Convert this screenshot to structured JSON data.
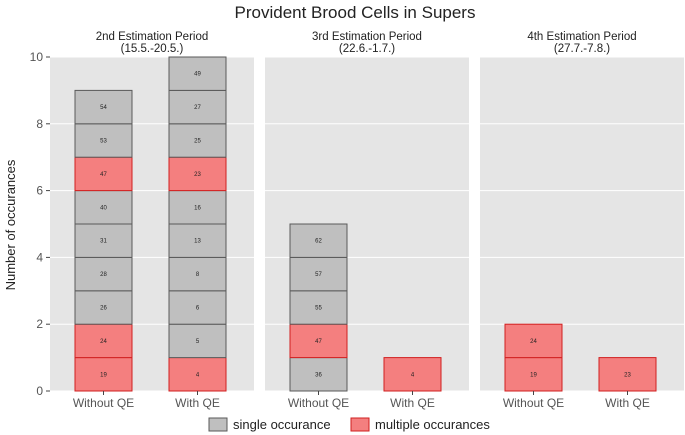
{
  "chart_data": {
    "type": "bar",
    "title": "Provident Brood Cells in Supers",
    "ylabel": "Number of occurances",
    "ylim": [
      0,
      10
    ],
    "yticks": [
      0,
      2,
      4,
      6,
      8,
      10
    ],
    "categories": [
      "Without QE",
      "With QE"
    ],
    "colors": {
      "single": "#bfbfbf",
      "multiple": "#f47f7f",
      "single_edge": "#5a5a5a",
      "multiple_edge": "#d11f1f",
      "panel_bg": "#e5e5e5"
    },
    "legend": {
      "position": "bottom",
      "entries": [
        {
          "key": "single",
          "label": "single occurance"
        },
        {
          "key": "multiple",
          "label": "multiple occurances"
        }
      ]
    },
    "panels": [
      {
        "title_line1": "2nd Estimation Period",
        "title_line2": "(15.5.-20.5.)",
        "bars": [
          {
            "category": "Without QE",
            "stack": [
              {
                "label": "19",
                "type": "multiple"
              },
              {
                "label": "24",
                "type": "multiple"
              },
              {
                "label": "26",
                "type": "single"
              },
              {
                "label": "28",
                "type": "single"
              },
              {
                "label": "31",
                "type": "single"
              },
              {
                "label": "40",
                "type": "single"
              },
              {
                "label": "47",
                "type": "multiple"
              },
              {
                "label": "53",
                "type": "single"
              },
              {
                "label": "54",
                "type": "single"
              }
            ]
          },
          {
            "category": "With QE",
            "stack": [
              {
                "label": "4",
                "type": "multiple"
              },
              {
                "label": "5",
                "type": "single"
              },
              {
                "label": "6",
                "type": "single"
              },
              {
                "label": "8",
                "type": "single"
              },
              {
                "label": "13",
                "type": "single"
              },
              {
                "label": "16",
                "type": "single"
              },
              {
                "label": "23",
                "type": "multiple"
              },
              {
                "label": "25",
                "type": "single"
              },
              {
                "label": "27",
                "type": "single"
              },
              {
                "label": "49",
                "type": "single"
              }
            ]
          }
        ]
      },
      {
        "title_line1": "3rd Estimation Period",
        "title_line2": "(22.6.-1.7.)",
        "bars": [
          {
            "category": "Without QE",
            "stack": [
              {
                "label": "36",
                "type": "single"
              },
              {
                "label": "47",
                "type": "multiple"
              },
              {
                "label": "55",
                "type": "single"
              },
              {
                "label": "57",
                "type": "single"
              },
              {
                "label": "62",
                "type": "single"
              }
            ]
          },
          {
            "category": "With QE",
            "stack": [
              {
                "label": "4",
                "type": "multiple"
              }
            ]
          }
        ]
      },
      {
        "title_line1": "4th Estimation Period",
        "title_line2": "(27.7.-7.8.)",
        "bars": [
          {
            "category": "Without QE",
            "stack": [
              {
                "label": "19",
                "type": "multiple"
              },
              {
                "label": "24",
                "type": "multiple"
              }
            ]
          },
          {
            "category": "With QE",
            "stack": [
              {
                "label": "23",
                "type": "multiple"
              }
            ]
          }
        ]
      }
    ]
  }
}
